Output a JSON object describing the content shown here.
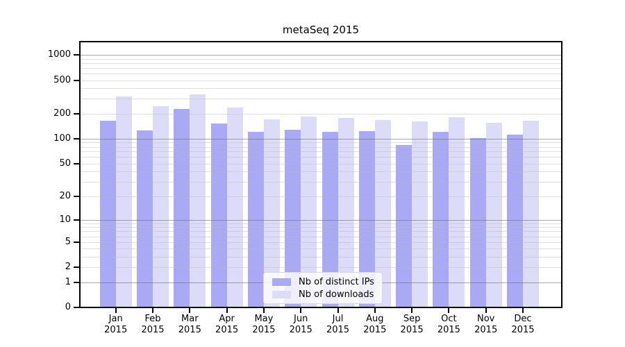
{
  "figure": {
    "title": "metaSeq 2015"
  },
  "chart_data": {
    "type": "bar",
    "title": "metaSeq 2015",
    "categories": [
      "Jan",
      "Feb",
      "Mar",
      "Apr",
      "May",
      "Jun",
      "Jul",
      "Aug",
      "Sep",
      "Oct",
      "Nov",
      "Dec"
    ],
    "x_tick_second_line": "2015",
    "series": [
      {
        "name": "Nb of distinct IPs",
        "color": "#a9a9f5",
        "values": [
          165,
          126,
          225,
          151,
          122,
          128,
          122,
          123,
          84,
          120,
          102,
          113
        ]
      },
      {
        "name": "Nb of downloads",
        "color": "#dcdcf9",
        "values": [
          322,
          247,
          338,
          238,
          170,
          185,
          177,
          166,
          160,
          182,
          156,
          165
        ]
      }
    ],
    "y_scale": "log1p",
    "y_ticks": [
      0,
      1,
      2,
      5,
      10,
      20,
      50,
      100,
      200,
      500,
      1000
    ],
    "y_minor_gridlines": [
      2,
      3,
      4,
      5,
      6,
      7,
      8,
      9,
      20,
      30,
      40,
      50,
      60,
      70,
      80,
      90,
      200,
      300,
      400,
      500,
      600,
      700,
      800,
      900
    ],
    "y_major_gridlines": [
      1,
      10,
      100,
      1000
    ],
    "ylim": [
      0,
      1400
    ],
    "xlabel": "",
    "ylabel": "",
    "grid": "horizontal",
    "legend_position": "lower-center"
  },
  "colors": {
    "background": "#ffffff",
    "axis": "#000000",
    "major_grid": "#6e6e6e",
    "minor_grid": "#b9b9b9",
    "bar_distinct_ips": "#a9a9f5",
    "bar_downloads": "#dcdcf9"
  }
}
